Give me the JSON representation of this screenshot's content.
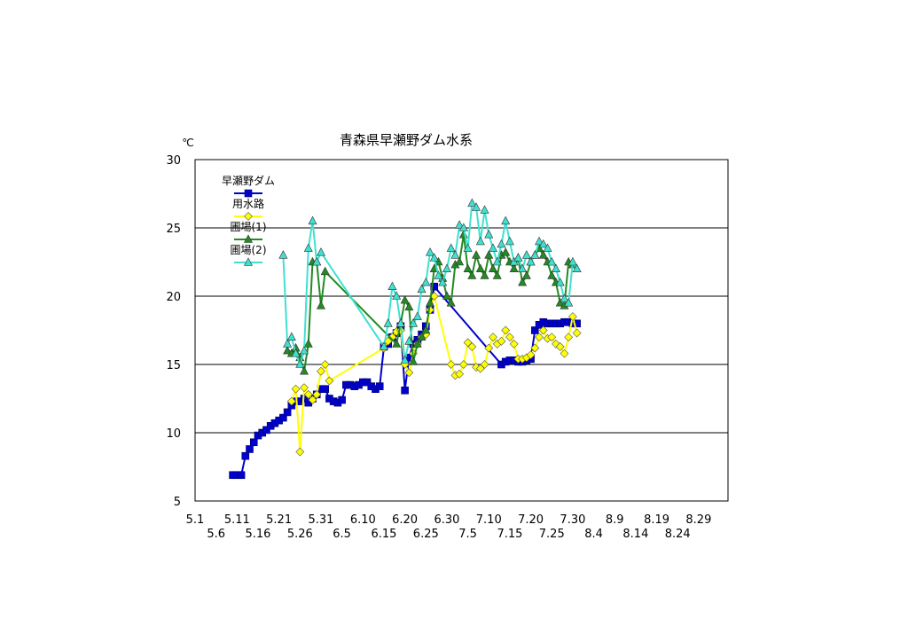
{
  "chart_data": {
    "type": "line",
    "title": "青森県早瀬野ダム水系",
    "unit_label": "℃",
    "ylim": [
      5,
      30
    ],
    "yticks": [
      5,
      10,
      15,
      20,
      25,
      30
    ],
    "xlim_days": [
      0,
      127
    ],
    "xticks_top": [
      "5.1",
      "5.11",
      "5.21",
      "5.31",
      "6.10",
      "6.20",
      "6.30",
      "7.10",
      "7.20",
      "7.30",
      "8.9",
      "8.19",
      "8.29"
    ],
    "xticks_bottom": [
      "5.6",
      "5.16",
      "5.26",
      "6.5",
      "6.15",
      "6.25",
      "7.5",
      "7.15",
      "7.25",
      "8.4",
      "8.14",
      "8.24"
    ],
    "grid": true,
    "legend_position": "top-left",
    "series": [
      {
        "name": "早瀬野ダム",
        "color": "#0000cc",
        "marker": "square",
        "points": [
          [
            "5.10",
            6.9
          ],
          [
            "5.11",
            6.9
          ],
          [
            "5.12",
            6.9
          ],
          [
            "5.13",
            8.3
          ],
          [
            "5.14",
            8.8
          ],
          [
            "5.15",
            9.3
          ],
          [
            "5.16",
            9.8
          ],
          [
            "5.17",
            10.0
          ],
          [
            "5.18",
            10.2
          ],
          [
            "5.19",
            10.5
          ],
          [
            "5.20",
            10.7
          ],
          [
            "5.21",
            10.9
          ],
          [
            "5.22",
            11.1
          ],
          [
            "5.23",
            11.5
          ],
          [
            "5.24",
            12.0
          ],
          [
            "5.25",
            12.3
          ],
          [
            "5.26",
            12.3
          ],
          [
            "5.27",
            12.5
          ],
          [
            "5.28",
            12.2
          ],
          [
            "5.29",
            12.5
          ],
          [
            "5.30",
            12.8
          ],
          [
            "5.31",
            13.2
          ],
          [
            "6.1",
            13.2
          ],
          [
            "6.2",
            12.5
          ],
          [
            "6.3",
            12.3
          ],
          [
            "6.4",
            12.2
          ],
          [
            "6.5",
            12.4
          ],
          [
            "6.6",
            13.5
          ],
          [
            "6.7",
            13.5
          ],
          [
            "6.8",
            13.4
          ],
          [
            "6.9",
            13.5
          ],
          [
            "6.10",
            13.7
          ],
          [
            "6.11",
            13.7
          ],
          [
            "6.12",
            13.4
          ],
          [
            "6.13",
            13.2
          ],
          [
            "6.14",
            13.4
          ],
          [
            "6.15",
            16.3
          ],
          [
            "6.16",
            16.5
          ],
          [
            "6.17",
            17.0
          ],
          [
            "6.18",
            17.3
          ],
          [
            "6.19",
            17.8
          ],
          [
            "6.20",
            13.1
          ],
          [
            "6.21",
            15.5
          ],
          [
            "6.22",
            16.5
          ],
          [
            "6.23",
            16.8
          ],
          [
            "6.24",
            17.2
          ],
          [
            "6.25",
            17.8
          ],
          [
            "6.26",
            19.0
          ],
          [
            "6.27",
            20.7
          ],
          [
            "7.13",
            15.0
          ],
          [
            "7.14",
            15.2
          ],
          [
            "7.15",
            15.3
          ],
          [
            "7.16",
            15.3
          ],
          [
            "7.17",
            15.2
          ],
          [
            "7.18",
            15.2
          ],
          [
            "7.19",
            15.3
          ],
          [
            "7.20",
            15.4
          ],
          [
            "7.21",
            17.5
          ],
          [
            "7.22",
            17.9
          ],
          [
            "7.23",
            18.1
          ],
          [
            "7.24",
            18.0
          ],
          [
            "7.25",
            18.0
          ],
          [
            "7.26",
            18.0
          ],
          [
            "7.27",
            18.0
          ],
          [
            "7.28",
            18.1
          ],
          [
            "7.29",
            18.1
          ],
          [
            "7.30",
            18.0
          ],
          [
            "7.31",
            18.0
          ]
        ]
      },
      {
        "name": "用水路",
        "color": "#ffff00",
        "marker": "diamond",
        "points": [
          [
            "5.24",
            12.3
          ],
          [
            "5.25",
            13.2
          ],
          [
            "5.26",
            8.6
          ],
          [
            "5.27",
            13.3
          ],
          [
            "5.28",
            12.8
          ],
          [
            "5.29",
            12.4
          ],
          [
            "5.30",
            12.8
          ],
          [
            "5.31",
            14.5
          ],
          [
            "6.1",
            15.0
          ],
          [
            "6.2",
            13.8
          ],
          [
            "6.15",
            16.2
          ],
          [
            "6.16",
            16.7
          ],
          [
            "6.17",
            17.0
          ],
          [
            "6.18",
            17.4
          ],
          [
            "6.19",
            17.5
          ],
          [
            "6.20",
            15.0
          ],
          [
            "6.21",
            14.4
          ],
          [
            "6.22",
            15.8
          ],
          [
            "6.23",
            16.5
          ],
          [
            "6.24",
            17.0
          ],
          [
            "6.25",
            17.2
          ],
          [
            "6.26",
            19.0
          ],
          [
            "6.27",
            20.0
          ],
          [
            "7.1",
            15.0
          ],
          [
            "7.2",
            14.2
          ],
          [
            "7.3",
            14.3
          ],
          [
            "7.4",
            15.0
          ],
          [
            "7.5",
            16.6
          ],
          [
            "7.6",
            16.3
          ],
          [
            "7.7",
            14.8
          ],
          [
            "7.8",
            14.7
          ],
          [
            "7.9",
            15.0
          ],
          [
            "7.10",
            16.2
          ],
          [
            "7.11",
            17.0
          ],
          [
            "7.12",
            16.5
          ],
          [
            "7.13",
            16.7
          ],
          [
            "7.14",
            17.5
          ],
          [
            "7.15",
            17.0
          ],
          [
            "7.16",
            16.5
          ],
          [
            "7.17",
            15.4
          ],
          [
            "7.18",
            15.4
          ],
          [
            "7.19",
            15.5
          ],
          [
            "7.20",
            15.7
          ],
          [
            "7.21",
            16.2
          ],
          [
            "7.22",
            17.0
          ],
          [
            "7.23",
            17.5
          ],
          [
            "7.24",
            16.9
          ],
          [
            "7.25",
            17.0
          ],
          [
            "7.26",
            16.5
          ],
          [
            "7.27",
            16.3
          ],
          [
            "7.28",
            15.8
          ],
          [
            "7.29",
            17.0
          ],
          [
            "7.30",
            18.5
          ],
          [
            "7.31",
            17.3
          ]
        ]
      },
      {
        "name": "圃場(1)",
        "color": "#228b22",
        "marker": "triangle",
        "points": [
          [
            "5.23",
            16.0
          ],
          [
            "5.24",
            15.8
          ],
          [
            "5.25",
            16.2
          ],
          [
            "5.26",
            15.5
          ],
          [
            "5.27",
            14.5
          ],
          [
            "5.28",
            16.5
          ],
          [
            "5.29",
            22.5
          ],
          [
            "5.30",
            22.5
          ],
          [
            "5.31",
            19.3
          ],
          [
            "6.1",
            21.8
          ],
          [
            "6.18",
            16.5
          ],
          [
            "6.19",
            18.0
          ],
          [
            "6.20",
            19.7
          ],
          [
            "6.21",
            19.2
          ],
          [
            "6.22",
            15.2
          ],
          [
            "6.23",
            16.5
          ],
          [
            "6.24",
            17.0
          ],
          [
            "6.25",
            17.5
          ],
          [
            "6.26",
            19.5
          ],
          [
            "6.27",
            22.0
          ],
          [
            "6.28",
            22.5
          ],
          [
            "6.29",
            21.3
          ],
          [
            "6.30",
            20.0
          ],
          [
            "7.1",
            19.5
          ],
          [
            "7.2",
            22.3
          ],
          [
            "7.3",
            22.5
          ],
          [
            "7.4",
            24.5
          ],
          [
            "7.5",
            22.0
          ],
          [
            "7.6",
            21.5
          ],
          [
            "7.7",
            23.0
          ],
          [
            "7.8",
            22.0
          ],
          [
            "7.9",
            21.5
          ],
          [
            "7.10",
            23.0
          ],
          [
            "7.11",
            22.0
          ],
          [
            "7.12",
            21.5
          ],
          [
            "7.13",
            23.0
          ],
          [
            "7.14",
            23.2
          ],
          [
            "7.15",
            22.5
          ],
          [
            "7.16",
            22.0
          ],
          [
            "7.17",
            22.8
          ],
          [
            "7.18",
            21.0
          ],
          [
            "7.19",
            21.5
          ],
          [
            "7.20",
            22.5
          ],
          [
            "7.21",
            23.0
          ],
          [
            "7.22",
            23.5
          ],
          [
            "7.23",
            23.0
          ],
          [
            "7.24",
            22.5
          ],
          [
            "7.25",
            21.5
          ],
          [
            "7.26",
            21.0
          ],
          [
            "7.27",
            19.5
          ],
          [
            "7.28",
            19.3
          ],
          [
            "7.29",
            22.5
          ],
          [
            "7.30",
            22.3
          ]
        ]
      },
      {
        "name": "圃場(2)",
        "color": "#40e0d0",
        "marker": "triangle",
        "points": [
          [
            "5.22",
            23.0
          ],
          [
            "5.23",
            16.5
          ],
          [
            "5.24",
            17.0
          ],
          [
            "5.25",
            15.8
          ],
          [
            "5.26",
            15.0
          ],
          [
            "5.27",
            16.0
          ],
          [
            "5.28",
            23.5
          ],
          [
            "5.29",
            25.5
          ],
          [
            "5.30",
            22.5
          ],
          [
            "5.31",
            23.2
          ],
          [
            "6.15",
            16.3
          ],
          [
            "6.16",
            18.0
          ],
          [
            "6.17",
            20.7
          ],
          [
            "6.18",
            20.0
          ],
          [
            "6.19",
            18.0
          ],
          [
            "6.20",
            15.3
          ],
          [
            "6.21",
            16.7
          ],
          [
            "6.22",
            18.0
          ],
          [
            "6.23",
            18.5
          ],
          [
            "6.24",
            20.5
          ],
          [
            "6.25",
            21.0
          ],
          [
            "6.26",
            23.2
          ],
          [
            "6.27",
            22.8
          ],
          [
            "6.28",
            21.5
          ],
          [
            "6.29",
            21.0
          ],
          [
            "6.30",
            22.0
          ],
          [
            "7.1",
            23.5
          ],
          [
            "7.2",
            23.0
          ],
          [
            "7.3",
            25.2
          ],
          [
            "7.4",
            25.0
          ],
          [
            "7.5",
            23.5
          ],
          [
            "7.6",
            26.8
          ],
          [
            "7.7",
            26.5
          ],
          [
            "7.8",
            24.0
          ],
          [
            "7.9",
            26.3
          ],
          [
            "7.10",
            24.5
          ],
          [
            "7.11",
            23.5
          ],
          [
            "7.12",
            22.5
          ],
          [
            "7.13",
            23.8
          ],
          [
            "7.14",
            25.5
          ],
          [
            "7.15",
            24.0
          ],
          [
            "7.16",
            22.5
          ],
          [
            "7.17",
            22.8
          ],
          [
            "7.18",
            22.0
          ],
          [
            "7.19",
            23.0
          ],
          [
            "7.20",
            22.5
          ],
          [
            "7.21",
            23.0
          ],
          [
            "7.22",
            24.0
          ],
          [
            "7.23",
            23.8
          ],
          [
            "7.24",
            23.5
          ],
          [
            "7.25",
            22.5
          ],
          [
            "7.26",
            22.0
          ],
          [
            "7.27",
            21.0
          ],
          [
            "7.28",
            19.8
          ],
          [
            "7.29",
            19.5
          ],
          [
            "7.30",
            22.5
          ],
          [
            "7.31",
            22.0
          ]
        ]
      }
    ]
  }
}
